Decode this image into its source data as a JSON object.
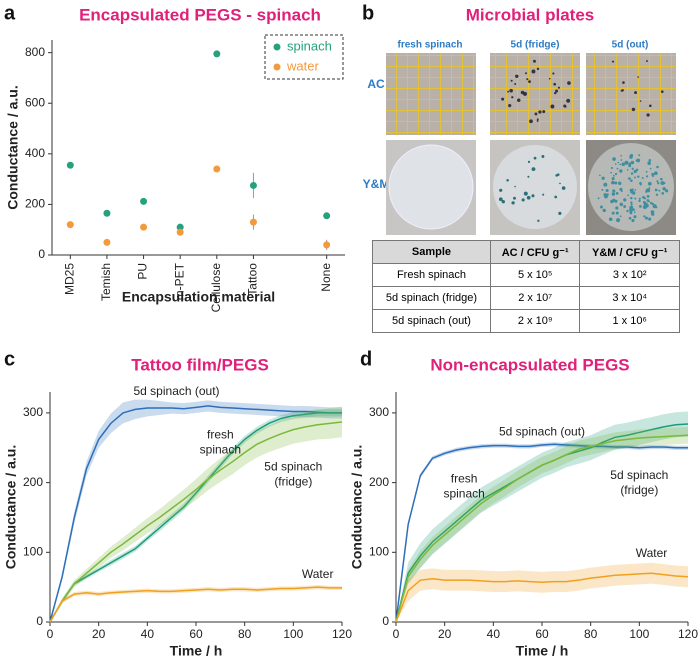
{
  "chart_data": [
    {
      "type": "scatter",
      "label": "a",
      "title": "Encapsulated PEGS - spinach",
      "x_label": "Encapsulation material",
      "y_label": "Conductance / a.u.",
      "categories": [
        "MD25",
        "Temish",
        "PU",
        "m-PET",
        "Cellulose",
        "Tattoo",
        null,
        "None"
      ],
      "series": [
        {
          "name": "spinach",
          "color": "#26a17e",
          "values": [
            355,
            165,
            212,
            110,
            795,
            275,
            null,
            155
          ],
          "errors": [
            5,
            5,
            5,
            5,
            5,
            50,
            null,
            12
          ]
        },
        {
          "name": "water",
          "color": "#f39a3c",
          "values": [
            120,
            50,
            110,
            90,
            340,
            130,
            null,
            40
          ],
          "errors": [
            5,
            5,
            5,
            5,
            5,
            30,
            null,
            20
          ]
        }
      ],
      "ylim": [
        0,
        850
      ],
      "yticks": [
        0,
        200,
        400,
        600,
        800
      ],
      "legend": "upper right"
    },
    {
      "type": "line",
      "label": "c",
      "title": "Tattoo film/PEGS",
      "x_label": "Time / h",
      "y_label": "Conductance / a.u.",
      "x": [
        0,
        5,
        10,
        15,
        20,
        25,
        30,
        35,
        40,
        45,
        50,
        55,
        60,
        65,
        70,
        75,
        80,
        85,
        90,
        95,
        100,
        105,
        110,
        115,
        120
      ],
      "series": [
        {
          "name": "5d spinach (out)",
          "color": "#2c6fbb",
          "values": [
            0,
            65,
            150,
            220,
            262,
            285,
            300,
            305,
            307,
            307,
            307,
            306,
            308,
            310,
            308,
            307,
            306,
            305,
            304,
            303,
            302,
            302,
            301,
            300,
            300
          ],
          "errors": [
            0,
            5,
            8,
            10,
            12,
            14,
            15,
            14,
            12,
            10,
            8,
            8,
            8,
            8,
            8,
            8,
            8,
            8,
            8,
            8,
            8,
            8,
            8,
            8,
            8
          ]
        },
        {
          "name": "fresh spinach",
          "color": "#1a9c7a",
          "values": [
            0,
            30,
            55,
            65,
            75,
            85,
            95,
            105,
            120,
            135,
            150,
            165,
            185,
            205,
            225,
            245,
            262,
            275,
            285,
            292,
            296,
            298,
            300,
            300,
            300
          ],
          "errors": [
            0,
            3,
            3,
            3,
            3,
            4,
            4,
            4,
            4,
            5,
            5,
            5,
            5,
            5,
            5,
            5,
            5,
            5,
            5,
            5,
            5,
            5,
            5,
            5,
            5
          ]
        },
        {
          "name": "5d spinach (fridge)",
          "color": "#7cb83a",
          "values": [
            0,
            30,
            55,
            70,
            85,
            100,
            112,
            125,
            138,
            150,
            163,
            176,
            190,
            205,
            218,
            230,
            243,
            255,
            263,
            270,
            276,
            280,
            283,
            285,
            287
          ],
          "errors": [
            0,
            4,
            5,
            6,
            7,
            8,
            9,
            10,
            11,
            12,
            13,
            14,
            15,
            16,
            17,
            18,
            18,
            19,
            19,
            20,
            20,
            21,
            21,
            22,
            22
          ]
        },
        {
          "name": "Water",
          "color": "#f0a01e",
          "values": [
            0,
            30,
            40,
            42,
            40,
            42,
            43,
            44,
            45,
            44,
            44,
            45,
            46,
            47,
            46,
            47,
            47,
            46,
            47,
            48,
            48,
            49,
            50,
            49,
            49
          ],
          "errors": [
            0,
            3,
            3,
            3,
            3,
            3,
            3,
            3,
            3,
            3,
            3,
            3,
            3,
            3,
            3,
            3,
            3,
            3,
            3,
            3,
            3,
            3,
            3,
            3,
            3
          ]
        }
      ],
      "annotations": [
        [
          "5d spinach (out)"
        ],
        [
          "fresh",
          "spinach"
        ],
        [
          "5d spinach",
          "(fridge)"
        ],
        [
          "Water"
        ]
      ],
      "xlim": [
        0,
        120
      ],
      "xticks": [
        0,
        20,
        40,
        60,
        80,
        100,
        120
      ],
      "ylim": [
        0,
        330
      ],
      "yticks": [
        0,
        100,
        200,
        300
      ]
    },
    {
      "type": "line",
      "label": "d",
      "title": "Non-encapsulated PEGS",
      "x_label": "Time / h",
      "y_label": "Conductance / a.u.",
      "x": [
        0,
        5,
        10,
        15,
        20,
        25,
        30,
        35,
        40,
        45,
        50,
        55,
        60,
        65,
        70,
        75,
        80,
        85,
        90,
        95,
        100,
        105,
        110,
        115,
        120
      ],
      "series": [
        {
          "name": "5d spinach (out)",
          "color": "#2c6fbb",
          "values": [
            0,
            140,
            210,
            235,
            242,
            247,
            250,
            252,
            253,
            253,
            252,
            252,
            254,
            255,
            254,
            253,
            252,
            252,
            251,
            251,
            250,
            251,
            251,
            250,
            250
          ],
          "errors": [
            0,
            3,
            3,
            3,
            3,
            3,
            3,
            3,
            3,
            3,
            3,
            3,
            3,
            3,
            3,
            3,
            3,
            3,
            3,
            3,
            3,
            3,
            3,
            3,
            3
          ]
        },
        {
          "name": "fresh spinach",
          "color": "#1a9c7a",
          "values": [
            0,
            70,
            95,
            115,
            130,
            145,
            160,
            175,
            185,
            195,
            205,
            215,
            225,
            232,
            240,
            245,
            250,
            258,
            265,
            268,
            272,
            276,
            280,
            283,
            284
          ],
          "errors": [
            0,
            15,
            18,
            18,
            18,
            18,
            18,
            18,
            18,
            18,
            18,
            18,
            18,
            18,
            18,
            18,
            18,
            18,
            18,
            18,
            18,
            18,
            18,
            18,
            18
          ]
        },
        {
          "name": "5d spinach (fridge)",
          "color": "#7cb83a",
          "values": [
            0,
            65,
            90,
            110,
            125,
            140,
            155,
            170,
            182,
            193,
            205,
            215,
            225,
            232,
            240,
            248,
            252,
            256,
            260,
            262,
            264,
            265,
            266,
            267,
            268
          ],
          "errors": [
            0,
            10,
            12,
            12,
            12,
            12,
            12,
            12,
            12,
            12,
            12,
            12,
            12,
            12,
            12,
            12,
            12,
            12,
            12,
            12,
            12,
            12,
            12,
            12,
            12
          ]
        },
        {
          "name": "Water",
          "color": "#f0a01e",
          "values": [
            0,
            45,
            60,
            62,
            60,
            60,
            60,
            59,
            58,
            58,
            59,
            58,
            57,
            58,
            58,
            60,
            63,
            65,
            67,
            68,
            69,
            70,
            68,
            66,
            65
          ],
          "errors": [
            0,
            15,
            15,
            15,
            15,
            15,
            15,
            15,
            15,
            15,
            15,
            15,
            15,
            15,
            15,
            15,
            15,
            15,
            15,
            15,
            15,
            15,
            15,
            15,
            15
          ]
        }
      ],
      "annotations": [
        [
          "5d spinach (out)"
        ],
        [
          "fresh",
          "spinach"
        ],
        [
          "5d spinach",
          "(fridge)"
        ],
        [
          "Water"
        ]
      ],
      "xlim": [
        0,
        120
      ],
      "xticks": [
        0,
        20,
        40,
        60,
        80,
        100,
        120
      ],
      "ylim": [
        0,
        330
      ],
      "yticks": [
        0,
        100,
        200,
        300
      ]
    }
  ],
  "panel_b": {
    "label": "b",
    "title": "Microbial plates",
    "columns": [
      "fresh spinach",
      "5d (fridge)",
      "5d (out)"
    ],
    "rows": [
      "AC",
      "Y&M"
    ],
    "table": {
      "header": [
        "Sample",
        "AC / CFU g⁻¹",
        "Y&M / CFU g⁻¹"
      ],
      "rows": [
        [
          "Fresh spinach",
          "5 x 10⁵",
          "3 x 10²"
        ],
        [
          "5d spinach (fridge)",
          "2 x 10⁷",
          "3 x 10⁴"
        ],
        [
          "5d spinach (out)",
          "2 x 10⁹",
          "1 x 10⁶"
        ]
      ]
    }
  }
}
